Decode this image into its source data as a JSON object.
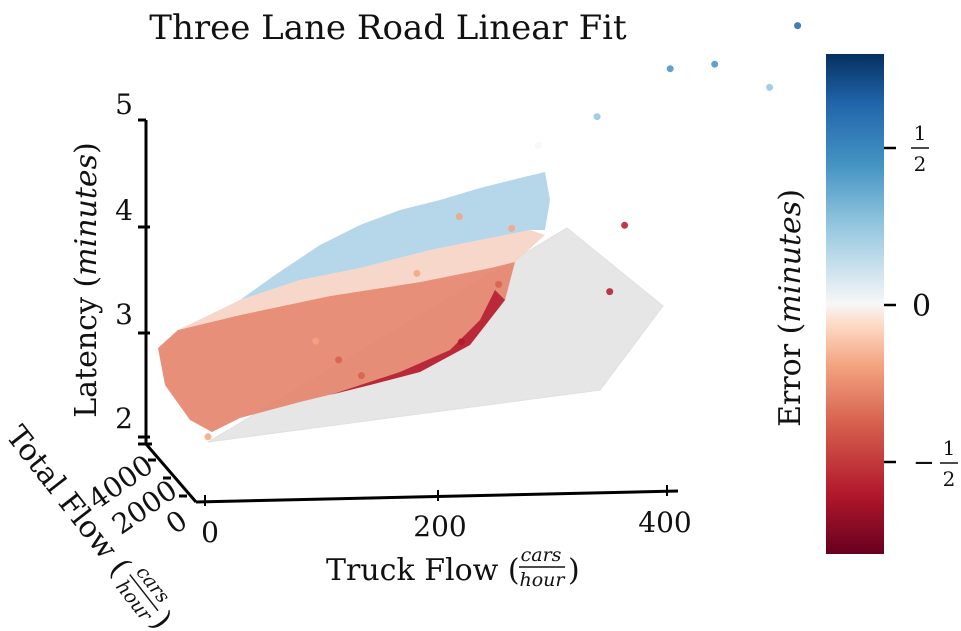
{
  "chart_data": {
    "type": "scatter",
    "projection": "3d",
    "title": "Three Lane Road Linear Fit",
    "xlabel": {
      "text": "Truck Flow",
      "unit_num": "cars",
      "unit_den": "hour"
    },
    "ylabel": {
      "text": "Total Flow",
      "unit_num": "cars",
      "unit_den": "hour"
    },
    "zlabel": {
      "text": "Latency",
      "unit": "minutes"
    },
    "xticks": [
      "0",
      "200",
      "400"
    ],
    "yticks": [
      "0",
      "2000",
      "4000"
    ],
    "zticks": [
      "2",
      "3",
      "4",
      "5"
    ],
    "xlim": [
      0,
      400
    ],
    "ylim": [
      0,
      5000
    ],
    "zlim": [
      1.8,
      5
    ],
    "colorbar": {
      "label": "Error",
      "unit": "minutes",
      "ticks": [
        "1/2",
        "0",
        "−1/2"
      ],
      "tick_values": [
        0.5,
        0,
        -0.5
      ],
      "range": [
        -0.7,
        0.7
      ],
      "colormap": "RdBu"
    },
    "series": [
      {
        "type": "surface",
        "description_values": "linear fit plane",
        "corners": [
          {
            "x": 0,
            "y": 0,
            "z": 2.0
          },
          {
            "x": 400,
            "y": 0,
            "z": 2.0
          },
          {
            "x": 400,
            "y": 5000,
            "z": 3.7
          },
          {
            "x": 0,
            "y": 5000,
            "z": 3.0
          }
        ],
        "color": "#e6e6e6"
      },
      {
        "type": "scatter",
        "points": [
          {
            "x": 0,
            "y": 0,
            "z": 2.05,
            "e": -0.3
          },
          {
            "x": 0,
            "y": 1500,
            "z": 2.35,
            "e": -0.3
          },
          {
            "x": 0,
            "y": 3500,
            "z": 2.72,
            "e": -0.25
          },
          {
            "x": 0,
            "y": 4600,
            "z": 2.95,
            "e": 0.0
          },
          {
            "x": 30,
            "y": 2500,
            "z": 2.55,
            "e": -0.3
          },
          {
            "x": 60,
            "y": 1000,
            "z": 2.3,
            "e": -0.35
          },
          {
            "x": 60,
            "y": 4600,
            "z": 3.15,
            "e": 0.15
          },
          {
            "x": 90,
            "y": 3000,
            "z": 2.7,
            "e": -0.3
          },
          {
            "x": 120,
            "y": 500,
            "z": 2.28,
            "e": -0.4
          },
          {
            "x": 120,
            "y": 4800,
            "z": 3.45,
            "e": 0.35
          },
          {
            "x": 150,
            "y": 2000,
            "z": 2.5,
            "e": -0.45
          },
          {
            "x": 180,
            "y": 4600,
            "z": 3.5,
            "e": 0.4
          },
          {
            "x": 200,
            "y": 800,
            "z": 2.38,
            "e": -0.6
          },
          {
            "x": 220,
            "y": 2800,
            "z": 2.65,
            "e": -0.55
          },
          {
            "x": 250,
            "y": 4800,
            "z": 3.7,
            "e": 0.45
          },
          {
            "x": 280,
            "y": 4000,
            "z": 3.4,
            "e": 0.2
          },
          {
            "x": 300,
            "y": 1500,
            "z": 2.45,
            "e": -0.6
          },
          {
            "x": 330,
            "y": 4900,
            "z": 3.95,
            "e": 0.5
          }
        ]
      }
    ]
  }
}
